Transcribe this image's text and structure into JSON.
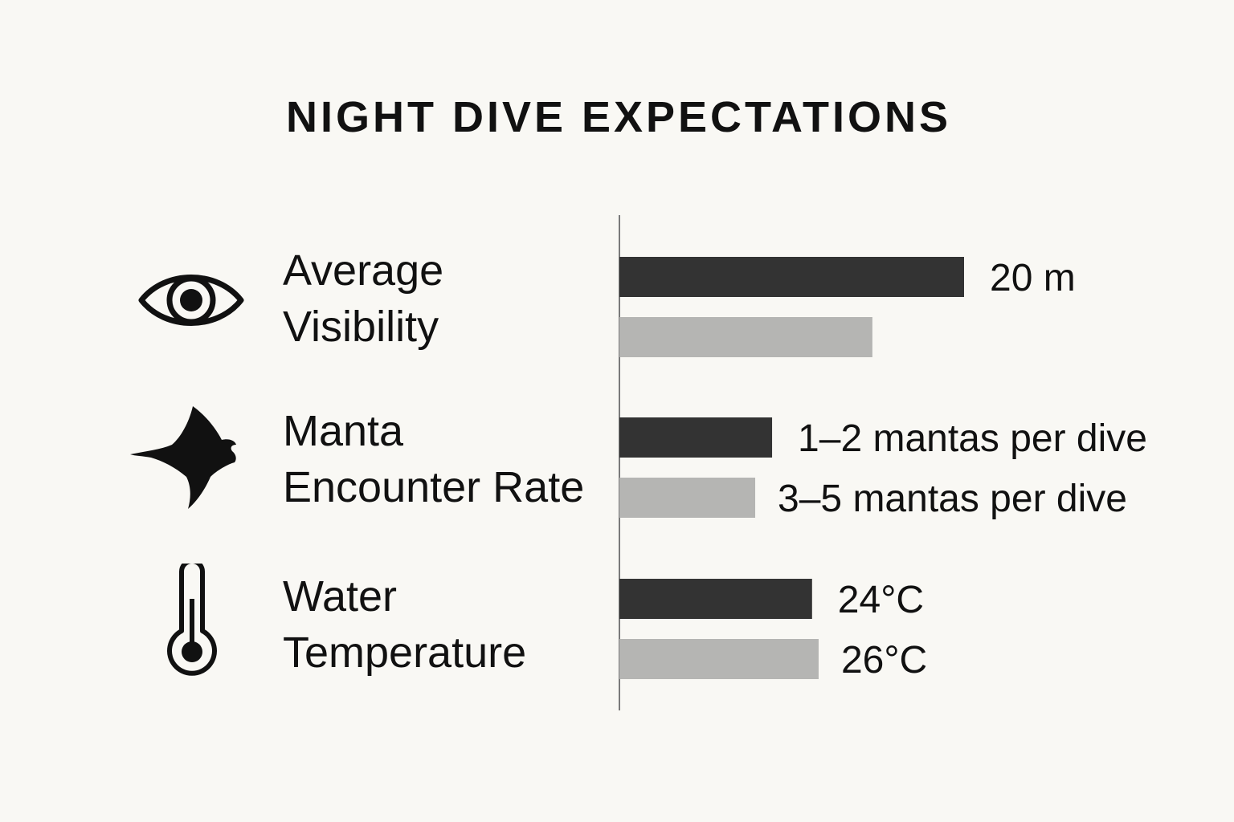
{
  "title": "NIGHT DIVE EXPECTATIONS",
  "colors": {
    "background": "#f9f8f4",
    "series_dark": "#333333",
    "series_light": "#b5b5b3",
    "axis": "#7a7a7a",
    "text": "#111111"
  },
  "metrics": [
    {
      "line1": "Average",
      "line2": "Visibility",
      "icon": "eye-icon"
    },
    {
      "line1": "Manta",
      "line2": "Encounter Rate",
      "icon": "manta-ray-icon"
    },
    {
      "line1": "Water",
      "line2": "Temperature",
      "icon": "thermometer-icon"
    }
  ],
  "chart_data": {
    "type": "bar",
    "orientation": "horizontal",
    "title": "NIGHT DIVE EXPECTATIONS",
    "categories": [
      "Average Visibility",
      "Manta Encounter Rate",
      "Water Temperature"
    ],
    "axis_labels_shown": false,
    "legend": "none",
    "grid": false,
    "series": [
      {
        "name": "dark",
        "relative_lengths": [
          1.0,
          0.443,
          0.559
        ],
        "data_labels": [
          "20 m",
          "1–2 mantas per dive",
          "24°C"
        ]
      },
      {
        "name": "light",
        "relative_lengths": [
          0.734,
          0.394,
          0.578
        ],
        "data_labels": [
          "",
          "3–5 mantas per dive",
          "26°C"
        ]
      }
    ]
  }
}
